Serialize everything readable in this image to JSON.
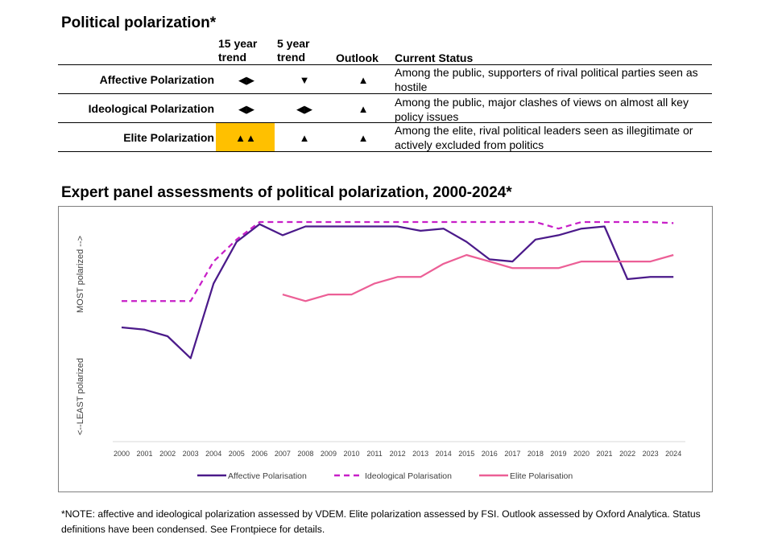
{
  "table": {
    "title": "Political polarization*",
    "headers": {
      "trend15": "15 year trend",
      "trend5": "5 year trend",
      "outlook": "Outlook",
      "status": "Current Status"
    },
    "rows": [
      {
        "label": "Affective Polarization",
        "trend15": "◀▶",
        "trend5": "▼",
        "outlook": "▲",
        "status": "Among the public, supporters of rival political parties seen as hostile"
      },
      {
        "label": "Ideological Polarization",
        "trend15": "◀▶",
        "trend5": "◀▶",
        "outlook": "▲",
        "status": "Among the public, major clashes of views on almost all key policy issues"
      },
      {
        "label": "Elite Polarization",
        "trend15": "▲▲",
        "trend5": "▲",
        "outlook": "▲",
        "status": "Among the elite, rival political leaders seen as illegitimate or actively excluded from politics",
        "highlight_color": "#ffc000"
      }
    ]
  },
  "chart_title": "Expert panel assessments of political polarization, 2000-2024*",
  "chart_data": {
    "type": "line",
    "x": [
      2000,
      2001,
      2002,
      2003,
      2004,
      2005,
      2006,
      2007,
      2008,
      2009,
      2010,
      2011,
      2012,
      2013,
      2014,
      2015,
      2016,
      2017,
      2018,
      2019,
      2020,
      2021,
      2022,
      2023,
      2024
    ],
    "y_top_label": "MOST polarized -->",
    "y_bottom_label": "<--LEAST polarized",
    "ylim": [
      0,
      100
    ],
    "grid": false,
    "legend_position": "bottom",
    "series": [
      {
        "name": "Affective Polarisation",
        "color": "#4b1a8a",
        "dash": "solid",
        "values": [
          52,
          51,
          48,
          38,
          72,
          91,
          99,
          94,
          98,
          98,
          98,
          98,
          98,
          96,
          97,
          91,
          83,
          82,
          92,
          94,
          97,
          98,
          74,
          75,
          75
        ]
      },
      {
        "name": "Ideological Polarisation",
        "color": "#c81fc8",
        "dash": "dashed",
        "values": [
          64,
          64,
          64,
          64,
          82,
          92,
          100,
          100,
          100,
          100,
          100,
          100,
          100,
          100,
          100,
          100,
          100,
          100,
          100,
          97,
          100,
          100,
          100,
          100,
          99.5
        ]
      },
      {
        "name": "Elite Polarisation",
        "color": "#ec5f96",
        "dash": "solid",
        "values": [
          null,
          null,
          null,
          null,
          null,
          null,
          null,
          67,
          64,
          67,
          67,
          72,
          75,
          75,
          81,
          85,
          82,
          79,
          79,
          79,
          82,
          82,
          82,
          82,
          85
        ]
      }
    ]
  },
  "note": "*NOTE: affective and ideological polarization assessed by VDEM. Elite polarization assessed by FSI. Outlook assessed by Oxford Analytica. Status definitions have been condensed. See Frontpiece for details."
}
